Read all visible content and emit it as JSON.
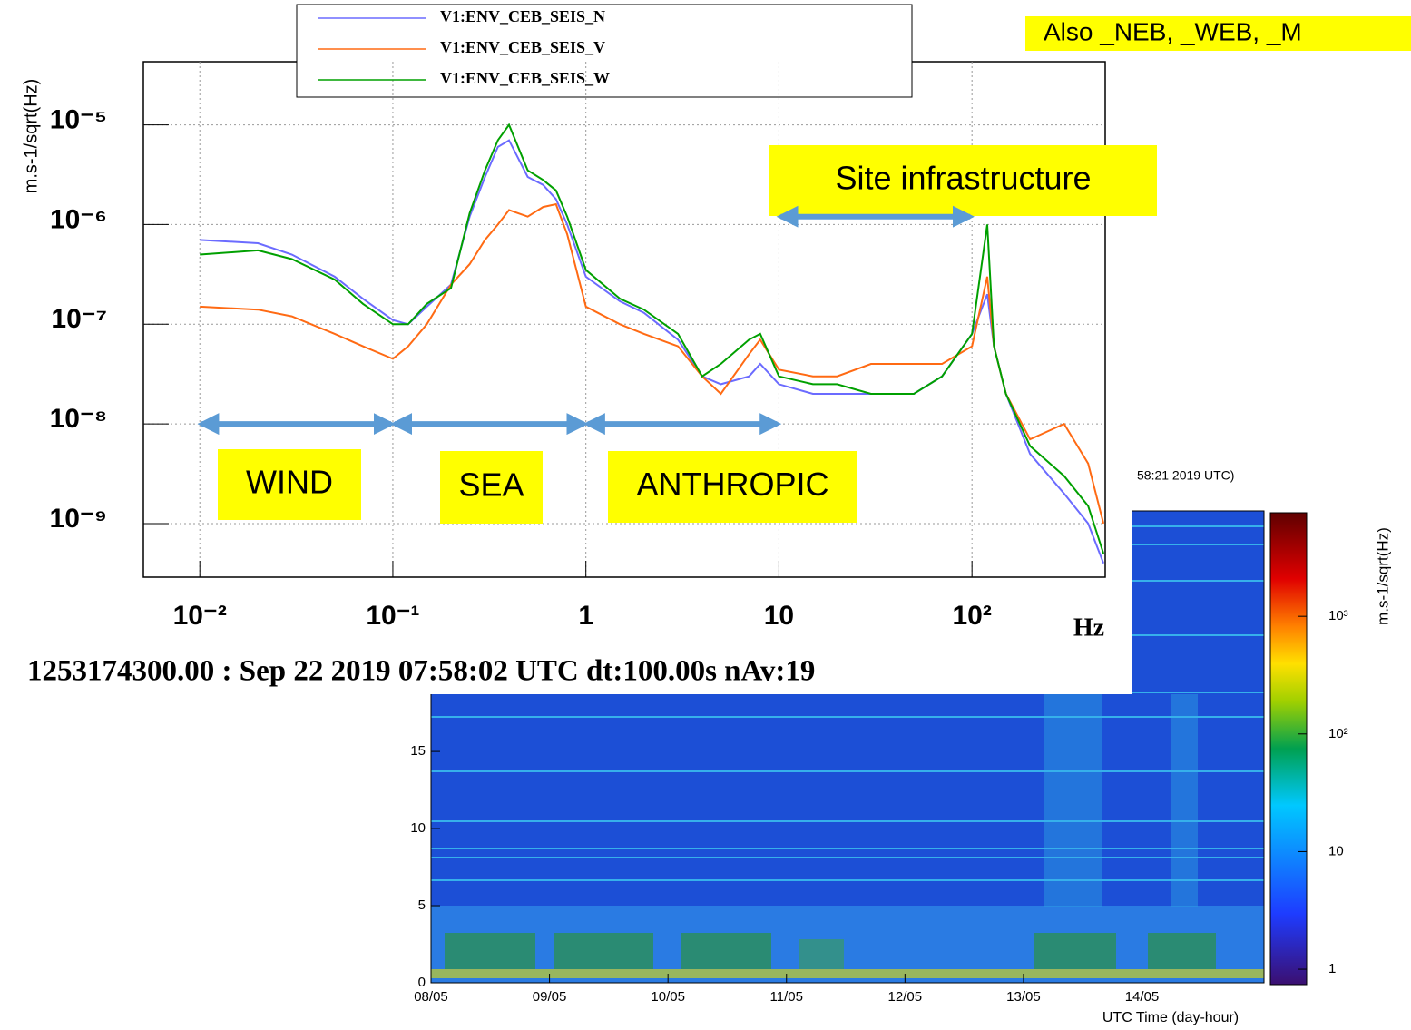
{
  "chart_data": [
    {
      "type": "line",
      "log_x": true,
      "log_y": true,
      "grid": true,
      "ylabel": "m.s-1/sqrt(Hz)",
      "xlabel": "Hz",
      "footer": "1253174300.00 : Sep 22 2019 07:58:02 UTC dt:100.00s nAv:19",
      "xlim": [
        0.0051,
        490
      ],
      "ylim": [
        2.9e-10,
        4.3e-05
      ],
      "xticks": [
        {
          "value": 0.01,
          "label": "10⁻²"
        },
        {
          "value": 0.1,
          "label": "10⁻¹"
        },
        1,
        10,
        {
          "value": 100,
          "label": "10²"
        }
      ],
      "yticks": [
        {
          "value": 1e-05,
          "label": "10⁻⁵"
        },
        {
          "value": 1e-06,
          "label": "10⁻⁶"
        },
        {
          "value": 1e-07,
          "label": "10⁻⁷"
        },
        {
          "value": 1e-08,
          "label": "10⁻⁸"
        },
        {
          "value": 1e-09,
          "label": "10⁻⁹"
        }
      ],
      "x": [
        0.01,
        0.02,
        0.03,
        0.05,
        0.07,
        0.1,
        0.12,
        0.15,
        0.2,
        0.25,
        0.3,
        0.35,
        0.4,
        0.5,
        0.6,
        0.7,
        0.8,
        1,
        1.5,
        2,
        3,
        4,
        5,
        7,
        8,
        10,
        15,
        20,
        30,
        50,
        70,
        100,
        120,
        130,
        150,
        200,
        300,
        400,
        480
      ],
      "series": [
        {
          "name": "V1:ENV_CEB_SEIS_N",
          "color": "#6b6bff",
          "values": [
            7e-07,
            6.5e-07,
            5e-07,
            3e-07,
            1.8e-07,
            1.1e-07,
            1e-07,
            1.5e-07,
            2.5e-07,
            1.2e-06,
            3e-06,
            6e-06,
            7e-06,
            3e-06,
            2.5e-06,
            1.8e-06,
            1e-06,
            3e-07,
            1.7e-07,
            1.3e-07,
            7e-08,
            3e-08,
            2.5e-08,
            3e-08,
            4e-08,
            2.5e-08,
            2e-08,
            2e-08,
            2e-08,
            2e-08,
            3e-08,
            8e-08,
            2e-07,
            6e-08,
            2e-08,
            5e-09,
            2e-09,
            1e-09,
            4e-10
          ]
        },
        {
          "name": "V1:ENV_CEB_SEIS_V",
          "color": "#ff6a13",
          "values": [
            1.5e-07,
            1.4e-07,
            1.2e-07,
            8e-08,
            6e-08,
            4.5e-08,
            6e-08,
            1e-07,
            2.5e-07,
            4e-07,
            7e-07,
            1e-06,
            1.4e-06,
            1.2e-06,
            1.5e-06,
            1.6e-06,
            8e-07,
            1.5e-07,
            1e-07,
            8e-08,
            6e-08,
            3e-08,
            2e-08,
            5e-08,
            7e-08,
            3.5e-08,
            3e-08,
            3e-08,
            4e-08,
            4e-08,
            4e-08,
            6e-08,
            3e-07,
            6e-08,
            2e-08,
            7e-09,
            1e-08,
            4e-09,
            1e-09
          ]
        },
        {
          "name": "V1:ENV_CEB_SEIS_W",
          "color": "#00a000",
          "values": [
            5e-07,
            5.5e-07,
            4.5e-07,
            2.8e-07,
            1.6e-07,
            1e-07,
            1e-07,
            1.6e-07,
            2.3e-07,
            1.3e-06,
            3.5e-06,
            7e-06,
            1e-05,
            3.5e-06,
            2.8e-06,
            2.2e-06,
            1.2e-06,
            3.5e-07,
            1.8e-07,
            1.4e-07,
            8e-08,
            3e-08,
            4e-08,
            7e-08,
            8e-08,
            3e-08,
            2.5e-08,
            2.5e-08,
            2e-08,
            2e-08,
            3e-08,
            8e-08,
            1e-06,
            6e-08,
            2e-08,
            6e-09,
            3e-09,
            1.5e-09,
            5e-10
          ]
        }
      ],
      "annotations": [
        {
          "text": "WIND",
          "x": [
            0.01,
            0.1
          ],
          "y": 1e-08
        },
        {
          "text": "SEA",
          "x": [
            0.1,
            1
          ],
          "y": 1e-08
        },
        {
          "text": "ANTHROPIC",
          "x": [
            1,
            10
          ],
          "y": 1e-08
        },
        {
          "text": "Site infrastructure",
          "x": [
            10,
            100
          ],
          "y": 1.2e-06
        },
        {
          "text": "Also _NEB, _WEB, _M"
        }
      ]
    },
    {
      "type": "spectrogram",
      "title": "58:21 2019 UTC)",
      "xlabel": "UTC Time (day-hour)",
      "colorbar_label": "m.s-1/sqrt(Hz)",
      "log_c": true,
      "xlim": [
        8,
        15.03
      ],
      "ylim": [
        0,
        30.6
      ],
      "clim": [
        0.74,
        7600
      ],
      "xticks": [
        {
          "value": 8,
          "label": "08/05"
        },
        {
          "value": 9,
          "label": "09/05"
        },
        {
          "value": 10,
          "label": "10/05"
        },
        {
          "value": 11,
          "label": "11/05"
        },
        {
          "value": 12,
          "label": "12/05"
        },
        {
          "value": 13,
          "label": "13/05"
        },
        {
          "value": 14,
          "label": "14/05"
        }
      ],
      "yticks": [
        0,
        5,
        10,
        15
      ],
      "cticks": [
        1,
        10,
        {
          "value": 100,
          "label": "10²"
        },
        {
          "value": 1000,
          "label": "10³"
        }
      ]
    }
  ]
}
